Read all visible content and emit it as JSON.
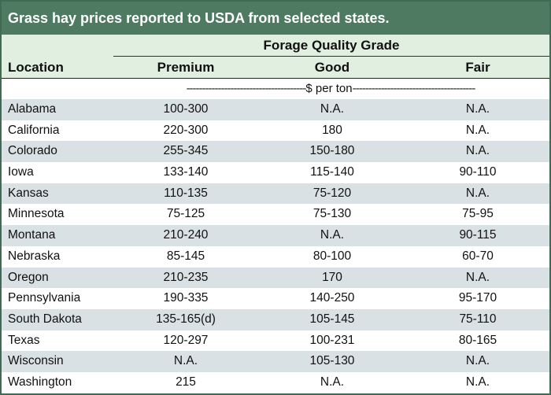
{
  "title": "Grass hay prices reported to USDA from selected states.",
  "group_header": "Forage Quality Grade",
  "columns": {
    "location": "Location",
    "premium": "Premium",
    "good": "Good",
    "fair": "Fair"
  },
  "unit": {
    "left_dashes": "--------------------------------------",
    "label": "$ per ton",
    "right_dashes": "---------------------------------------"
  },
  "rows": [
    {
      "location": "Alabama",
      "premium": "100-300",
      "good": "N.A.",
      "fair": "N.A."
    },
    {
      "location": "California",
      "premium": "220-300",
      "good": "180",
      "fair": "N.A."
    },
    {
      "location": "Colorado",
      "premium": "255-345",
      "good": "150-180",
      "fair": "N.A."
    },
    {
      "location": "Iowa",
      "premium": "133-140",
      "good": "115-140",
      "fair": "90-110"
    },
    {
      "location": "Kansas",
      "premium": "110-135",
      "good": "75-120",
      "fair": "N.A."
    },
    {
      "location": "Minnesota",
      "premium": "75-125",
      "good": "75-130",
      "fair": "75-95"
    },
    {
      "location": "Montana",
      "premium": "210-240",
      "good": "N.A.",
      "fair": "90-115"
    },
    {
      "location": "Nebraska",
      "premium": "85-145",
      "good": "80-100",
      "fair": "60-70"
    },
    {
      "location": "Oregon",
      "premium": "210-235",
      "good": "170",
      "fair": "N.A."
    },
    {
      "location": "Pennsylvania",
      "premium": "190-335",
      "good": "140-250",
      "fair": "95-170"
    },
    {
      "location": "South Dakota",
      "premium": "135-165(d)",
      "good": "105-145",
      "fair": "75-110"
    },
    {
      "location": "Texas",
      "premium": "120-297",
      "good": "100-231",
      "fair": "80-165"
    },
    {
      "location": "Wisconsin",
      "premium": "N.A.",
      "good": "105-130",
      "fair": "N.A."
    },
    {
      "location": "Washington",
      "premium": "215",
      "good": "N.A.",
      "fair": "N.A."
    }
  ],
  "colors": {
    "title_bg": "#4e7a62",
    "header_bg": "#e1efe0",
    "stripe": "#d9e1e4",
    "border": "#3f6a53"
  }
}
